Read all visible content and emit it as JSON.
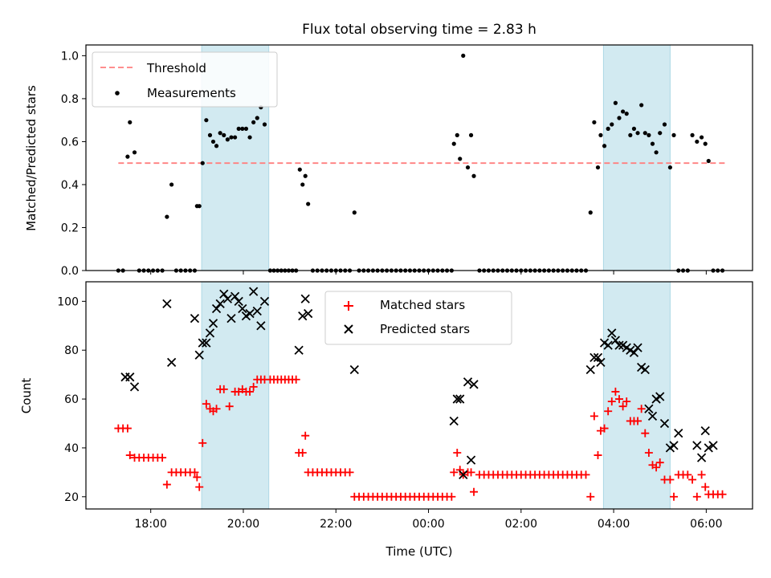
{
  "chart_data": {
    "type": "scatter",
    "title": "Flux total observing time = 2.83 h",
    "colors": {
      "threshold": "#ff7f7f",
      "measurements": "#000000",
      "matched": "#ff0000",
      "predicted": "#000000",
      "shade": "#add8e6"
    },
    "xlabel": "Time (UTC)",
    "xlim": [
      16.6,
      31.0
    ],
    "xticks": [
      {
        "value": 18,
        "label": "18:00"
      },
      {
        "value": 20,
        "label": "20:00"
      },
      {
        "value": 22,
        "label": "22:00"
      },
      {
        "value": 24,
        "label": "00:00"
      },
      {
        "value": 26,
        "label": "02:00"
      },
      {
        "value": 28,
        "label": "04:00"
      },
      {
        "value": 30,
        "label": "06:00"
      }
    ],
    "shaded_intervals": [
      [
        19.1,
        20.55
      ],
      [
        27.78,
        29.22
      ]
    ],
    "top_panel": {
      "ylabel": "Matched/Predicted stars",
      "ylim": [
        0,
        1.05
      ],
      "yticks": [
        "0.0",
        "0.2",
        "0.4",
        "0.6",
        "0.8",
        "1.0"
      ],
      "legend": {
        "position": "upper-left",
        "threshold_label": "Threshold",
        "measurements_label": "Measurements"
      },
      "threshold": {
        "y": 0.5,
        "x": [
          17.3,
          30.4
        ]
      },
      "measurements": [
        [
          17.3,
          0
        ],
        [
          17.4,
          0
        ],
        [
          17.5,
          0.53
        ],
        [
          17.55,
          0.69
        ],
        [
          17.65,
          0.55
        ],
        [
          17.75,
          0
        ],
        [
          17.85,
          0
        ],
        [
          17.95,
          0
        ],
        [
          18.05,
          0
        ],
        [
          18.15,
          0
        ],
        [
          18.25,
          0
        ],
        [
          18.35,
          0.25
        ],
        [
          18.45,
          0.4
        ],
        [
          18.55,
          0
        ],
        [
          18.65,
          0
        ],
        [
          18.75,
          0
        ],
        [
          18.85,
          0
        ],
        [
          18.95,
          0
        ],
        [
          19.0,
          0.3
        ],
        [
          19.05,
          0.3
        ],
        [
          19.12,
          0.5
        ],
        [
          19.2,
          0.7
        ],
        [
          19.28,
          0.63
        ],
        [
          19.35,
          0.6
        ],
        [
          19.42,
          0.58
        ],
        [
          19.5,
          0.64
        ],
        [
          19.58,
          0.63
        ],
        [
          19.66,
          0.61
        ],
        [
          19.74,
          0.62
        ],
        [
          19.82,
          0.62
        ],
        [
          19.9,
          0.66
        ],
        [
          19.98,
          0.66
        ],
        [
          20.06,
          0.66
        ],
        [
          20.14,
          0.62
        ],
        [
          20.22,
          0.69
        ],
        [
          20.3,
          0.71
        ],
        [
          20.38,
          0.76
        ],
        [
          20.46,
          0.68
        ],
        [
          20.58,
          0
        ],
        [
          20.66,
          0
        ],
        [
          20.74,
          0
        ],
        [
          20.82,
          0
        ],
        [
          20.9,
          0
        ],
        [
          20.98,
          0
        ],
        [
          21.06,
          0
        ],
        [
          21.14,
          0
        ],
        [
          21.22,
          0.47
        ],
        [
          21.28,
          0.4
        ],
        [
          21.34,
          0.44
        ],
        [
          21.4,
          0.31
        ],
        [
          21.5,
          0
        ],
        [
          21.6,
          0
        ],
        [
          21.7,
          0
        ],
        [
          21.8,
          0
        ],
        [
          21.9,
          0
        ],
        [
          22.0,
          0
        ],
        [
          22.1,
          0
        ],
        [
          22.2,
          0
        ],
        [
          22.3,
          0
        ],
        [
          22.4,
          0.27
        ],
        [
          22.5,
          0
        ],
        [
          22.6,
          0
        ],
        [
          22.7,
          0
        ],
        [
          22.8,
          0
        ],
        [
          22.9,
          0
        ],
        [
          23.0,
          0
        ],
        [
          23.1,
          0
        ],
        [
          23.2,
          0
        ],
        [
          23.3,
          0
        ],
        [
          23.4,
          0
        ],
        [
          23.5,
          0
        ],
        [
          23.6,
          0
        ],
        [
          23.7,
          0
        ],
        [
          23.8,
          0
        ],
        [
          23.9,
          0
        ],
        [
          24.0,
          0
        ],
        [
          24.1,
          0
        ],
        [
          24.2,
          0
        ],
        [
          24.3,
          0
        ],
        [
          24.4,
          0
        ],
        [
          24.5,
          0
        ],
        [
          24.55,
          0.59
        ],
        [
          24.62,
          0.63
        ],
        [
          24.68,
          0.52
        ],
        [
          24.75,
          1.0
        ],
        [
          24.85,
          0.48
        ],
        [
          24.92,
          0.63
        ],
        [
          24.98,
          0.44
        ],
        [
          25.1,
          0
        ],
        [
          25.2,
          0
        ],
        [
          25.3,
          0
        ],
        [
          25.4,
          0
        ],
        [
          25.5,
          0
        ],
        [
          25.6,
          0
        ],
        [
          25.7,
          0
        ],
        [
          25.8,
          0
        ],
        [
          25.9,
          0
        ],
        [
          26.0,
          0
        ],
        [
          26.1,
          0
        ],
        [
          26.2,
          0
        ],
        [
          26.3,
          0
        ],
        [
          26.4,
          0
        ],
        [
          26.5,
          0
        ],
        [
          26.6,
          0
        ],
        [
          26.7,
          0
        ],
        [
          26.8,
          0
        ],
        [
          26.9,
          0
        ],
        [
          27.0,
          0
        ],
        [
          27.1,
          0
        ],
        [
          27.2,
          0
        ],
        [
          27.3,
          0
        ],
        [
          27.4,
          0
        ],
        [
          27.5,
          0.27
        ],
        [
          27.58,
          0.69
        ],
        [
          27.66,
          0.48
        ],
        [
          27.72,
          0.63
        ],
        [
          27.8,
          0.58
        ],
        [
          27.88,
          0.66
        ],
        [
          27.96,
          0.68
        ],
        [
          28.04,
          0.78
        ],
        [
          28.12,
          0.71
        ],
        [
          28.2,
          0.74
        ],
        [
          28.28,
          0.73
        ],
        [
          28.36,
          0.63
        ],
        [
          28.44,
          0.66
        ],
        [
          28.52,
          0.64
        ],
        [
          28.6,
          0.77
        ],
        [
          28.68,
          0.64
        ],
        [
          28.76,
          0.63
        ],
        [
          28.84,
          0.59
        ],
        [
          28.92,
          0.55
        ],
        [
          29.0,
          0.64
        ],
        [
          29.1,
          0.68
        ],
        [
          29.22,
          0.48
        ],
        [
          29.3,
          0.63
        ],
        [
          29.4,
          0
        ],
        [
          29.5,
          0
        ],
        [
          29.6,
          0
        ],
        [
          29.7,
          0.63
        ],
        [
          29.8,
          0.6
        ],
        [
          29.9,
          0.62
        ],
        [
          29.98,
          0.59
        ],
        [
          30.05,
          0.51
        ],
        [
          30.15,
          0
        ],
        [
          30.25,
          0
        ],
        [
          30.35,
          0
        ]
      ]
    },
    "bottom_panel": {
      "ylabel": "Count",
      "ylim": [
        15,
        108
      ],
      "yticks": [
        "20",
        "40",
        "60",
        "80",
        "100"
      ],
      "legend": {
        "position": "upper-center",
        "matched_label": "Matched stars",
        "predicted_label": "Predicted stars"
      },
      "matched": [
        [
          17.3,
          48
        ],
        [
          17.4,
          48
        ],
        [
          17.5,
          48
        ],
        [
          17.55,
          37
        ],
        [
          17.65,
          36
        ],
        [
          17.75,
          36
        ],
        [
          17.85,
          36
        ],
        [
          17.95,
          36
        ],
        [
          18.05,
          36
        ],
        [
          18.15,
          36
        ],
        [
          18.25,
          36
        ],
        [
          18.35,
          25
        ],
        [
          18.45,
          30
        ],
        [
          18.55,
          30
        ],
        [
          18.65,
          30
        ],
        [
          18.75,
          30
        ],
        [
          18.85,
          30
        ],
        [
          18.95,
          30
        ],
        [
          19.0,
          28
        ],
        [
          19.05,
          24
        ],
        [
          19.12,
          42
        ],
        [
          19.2,
          58
        ],
        [
          19.28,
          56
        ],
        [
          19.35,
          55
        ],
        [
          19.42,
          56
        ],
        [
          19.5,
          64
        ],
        [
          19.58,
          64
        ],
        [
          19.7,
          57
        ],
        [
          19.82,
          63
        ],
        [
          19.9,
          63
        ],
        [
          19.98,
          64
        ],
        [
          20.06,
          63
        ],
        [
          20.14,
          63
        ],
        [
          20.22,
          65
        ],
        [
          20.3,
          68
        ],
        [
          20.38,
          68
        ],
        [
          20.46,
          68
        ],
        [
          20.58,
          68
        ],
        [
          20.66,
          68
        ],
        [
          20.74,
          68
        ],
        [
          20.82,
          68
        ],
        [
          20.9,
          68
        ],
        [
          20.98,
          68
        ],
        [
          21.06,
          68
        ],
        [
          21.14,
          68
        ],
        [
          21.2,
          38
        ],
        [
          21.28,
          38
        ],
        [
          21.34,
          45
        ],
        [
          21.4,
          30
        ],
        [
          21.5,
          30
        ],
        [
          21.6,
          30
        ],
        [
          21.7,
          30
        ],
        [
          21.8,
          30
        ],
        [
          21.9,
          30
        ],
        [
          22.0,
          30
        ],
        [
          22.1,
          30
        ],
        [
          22.2,
          30
        ],
        [
          22.3,
          30
        ],
        [
          22.4,
          20
        ],
        [
          22.5,
          20
        ],
        [
          22.6,
          20
        ],
        [
          22.7,
          20
        ],
        [
          22.8,
          20
        ],
        [
          22.9,
          20
        ],
        [
          23.0,
          20
        ],
        [
          23.1,
          20
        ],
        [
          23.2,
          20
        ],
        [
          23.3,
          20
        ],
        [
          23.4,
          20
        ],
        [
          23.5,
          20
        ],
        [
          23.6,
          20
        ],
        [
          23.7,
          20
        ],
        [
          23.8,
          20
        ],
        [
          23.9,
          20
        ],
        [
          24.0,
          20
        ],
        [
          24.1,
          20
        ],
        [
          24.2,
          20
        ],
        [
          24.3,
          20
        ],
        [
          24.4,
          20
        ],
        [
          24.5,
          20
        ],
        [
          24.55,
          30
        ],
        [
          24.62,
          38
        ],
        [
          24.68,
          31
        ],
        [
          24.75,
          29
        ],
        [
          24.85,
          30
        ],
        [
          24.92,
          30
        ],
        [
          24.98,
          22
        ],
        [
          25.1,
          29
        ],
        [
          25.2,
          29
        ],
        [
          25.3,
          29
        ],
        [
          25.4,
          29
        ],
        [
          25.5,
          29
        ],
        [
          25.6,
          29
        ],
        [
          25.7,
          29
        ],
        [
          25.8,
          29
        ],
        [
          25.9,
          29
        ],
        [
          26.0,
          29
        ],
        [
          26.1,
          29
        ],
        [
          26.2,
          29
        ],
        [
          26.3,
          29
        ],
        [
          26.4,
          29
        ],
        [
          26.5,
          29
        ],
        [
          26.6,
          29
        ],
        [
          26.7,
          29
        ],
        [
          26.8,
          29
        ],
        [
          26.9,
          29
        ],
        [
          27.0,
          29
        ],
        [
          27.1,
          29
        ],
        [
          27.2,
          29
        ],
        [
          27.3,
          29
        ],
        [
          27.4,
          29
        ],
        [
          27.5,
          20
        ],
        [
          27.58,
          53
        ],
        [
          27.66,
          37
        ],
        [
          27.72,
          47
        ],
        [
          27.8,
          48
        ],
        [
          27.88,
          55
        ],
        [
          27.96,
          59
        ],
        [
          28.04,
          63
        ],
        [
          28.12,
          60
        ],
        [
          28.2,
          57
        ],
        [
          28.28,
          59
        ],
        [
          28.36,
          51
        ],
        [
          28.44,
          51
        ],
        [
          28.52,
          51
        ],
        [
          28.6,
          56
        ],
        [
          28.68,
          46
        ],
        [
          28.76,
          38
        ],
        [
          28.84,
          33
        ],
        [
          28.92,
          32
        ],
        [
          29.0,
          34
        ],
        [
          29.1,
          27
        ],
        [
          29.22,
          27
        ],
        [
          29.3,
          20
        ],
        [
          29.4,
          29
        ],
        [
          29.5,
          29
        ],
        [
          29.6,
          29
        ],
        [
          29.7,
          27
        ],
        [
          29.8,
          20
        ],
        [
          29.9,
          29
        ],
        [
          29.98,
          24
        ],
        [
          30.05,
          21
        ],
        [
          30.15,
          21
        ],
        [
          30.25,
          21
        ],
        [
          30.35,
          21
        ]
      ],
      "predicted": [
        [
          17.45,
          69
        ],
        [
          17.55,
          69
        ],
        [
          17.65,
          65
        ],
        [
          18.35,
          99
        ],
        [
          18.45,
          75
        ],
        [
          18.95,
          93
        ],
        [
          19.05,
          78
        ],
        [
          19.12,
          83
        ],
        [
          19.2,
          83
        ],
        [
          19.28,
          87
        ],
        [
          19.35,
          91
        ],
        [
          19.42,
          97
        ],
        [
          19.5,
          99
        ],
        [
          19.58,
          103
        ],
        [
          19.66,
          101
        ],
        [
          19.74,
          93
        ],
        [
          19.82,
          102
        ],
        [
          19.9,
          100
        ],
        [
          19.98,
          97
        ],
        [
          20.06,
          94
        ],
        [
          20.14,
          95
        ],
        [
          20.22,
          104
        ],
        [
          20.3,
          96
        ],
        [
          20.38,
          90
        ],
        [
          20.46,
          100
        ],
        [
          21.2,
          80
        ],
        [
          21.28,
          94
        ],
        [
          21.34,
          101
        ],
        [
          21.4,
          95
        ],
        [
          22.4,
          72
        ],
        [
          24.55,
          51
        ],
        [
          24.62,
          60
        ],
        [
          24.68,
          60
        ],
        [
          24.75,
          29
        ],
        [
          24.85,
          67
        ],
        [
          24.92,
          35
        ],
        [
          24.98,
          66
        ],
        [
          27.5,
          72
        ],
        [
          27.58,
          77
        ],
        [
          27.66,
          77
        ],
        [
          27.72,
          75
        ],
        [
          27.8,
          83
        ],
        [
          27.88,
          82
        ],
        [
          27.96,
          87
        ],
        [
          28.04,
          84
        ],
        [
          28.12,
          82
        ],
        [
          28.2,
          82
        ],
        [
          28.28,
          81
        ],
        [
          28.36,
          80
        ],
        [
          28.44,
          79
        ],
        [
          28.52,
          81
        ],
        [
          28.6,
          73
        ],
        [
          28.68,
          72
        ],
        [
          28.76,
          56
        ],
        [
          28.84,
          53
        ],
        [
          28.92,
          60
        ],
        [
          29.0,
          61
        ],
        [
          29.1,
          50
        ],
        [
          29.22,
          40
        ],
        [
          29.3,
          41
        ],
        [
          29.4,
          46
        ],
        [
          29.8,
          41
        ],
        [
          29.9,
          36
        ],
        [
          29.98,
          47
        ],
        [
          30.05,
          40
        ],
        [
          30.15,
          41
        ]
      ]
    }
  }
}
